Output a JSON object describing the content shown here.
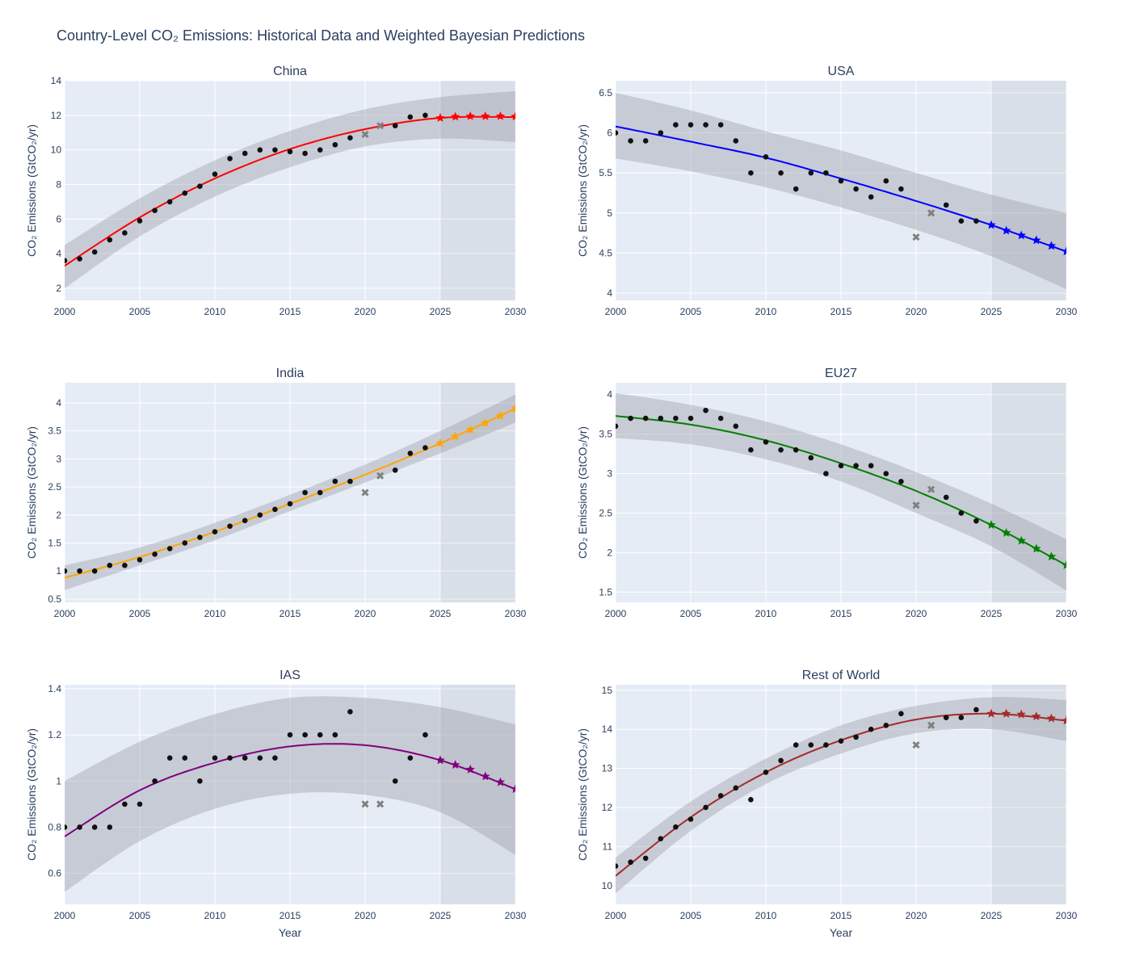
{
  "chart_data": {
    "type": "line",
    "title": "Country-Level CO₂ Emissions: Historical Data and Weighted Bayesian Predictions",
    "xlabel": "Year",
    "ylabel": "CO₂ Emissions (GtCO₂/yr)",
    "xlim": [
      2000,
      2030
    ],
    "x_ticks": [
      2000,
      2005,
      2010,
      2015,
      2020,
      2025,
      2030
    ],
    "forecast_region": [
      2025,
      2030
    ],
    "grid": true,
    "observed_years": [
      2000,
      2001,
      2002,
      2003,
      2004,
      2005,
      2006,
      2007,
      2008,
      2009,
      2010,
      2011,
      2012,
      2013,
      2014,
      2015,
      2016,
      2017,
      2018,
      2019,
      2022,
      2023,
      2024
    ],
    "outlier_years": [
      2020,
      2021
    ],
    "prediction_years": [
      2025,
      2026,
      2027,
      2028,
      2029,
      2030
    ],
    "fit_years": [
      2000,
      2005,
      2010,
      2015,
      2020,
      2025,
      2030
    ],
    "subplots": [
      {
        "name": "China",
        "color": "#FF0000",
        "ylim": [
          1.3,
          14
        ],
        "y_ticks": [
          2,
          4,
          6,
          8,
          10,
          12,
          14
        ],
        "observed": [
          3.6,
          3.7,
          4.1,
          4.8,
          5.2,
          5.9,
          6.5,
          7.0,
          7.5,
          7.9,
          8.6,
          9.5,
          9.8,
          10.0,
          10.0,
          9.9,
          9.8,
          10.0,
          10.3,
          10.7,
          11.4,
          11.9,
          12.0
        ],
        "outliers": [
          10.9,
          11.4
        ],
        "fit": [
          3.3,
          6.1,
          8.35,
          10.05,
          11.2,
          11.85,
          11.9
        ],
        "lower": [
          2.0,
          5.0,
          7.3,
          9.0,
          10.2,
          10.65,
          10.45
        ],
        "upper": [
          4.5,
          7.2,
          9.4,
          11.1,
          12.35,
          13.05,
          13.4
        ],
        "predictions": [
          11.85,
          11.92,
          11.95,
          11.95,
          11.95,
          11.93
        ]
      },
      {
        "name": "USA",
        "color": "#0000FF",
        "ylim": [
          3.91,
          6.65
        ],
        "y_ticks": [
          4,
          4.5,
          5,
          5.5,
          6,
          6.5
        ],
        "observed": [
          6.0,
          5.9,
          5.9,
          6.0,
          6.1,
          6.1,
          6.1,
          6.1,
          5.9,
          5.5,
          5.7,
          5.5,
          5.3,
          5.5,
          5.5,
          5.4,
          5.3,
          5.2,
          5.4,
          5.3,
          5.1,
          4.9,
          4.9
        ],
        "outliers": [
          4.7,
          5.0
        ],
        "fit": [
          6.08,
          5.89,
          5.69,
          5.43,
          5.15,
          4.85,
          4.52
        ],
        "lower": [
          5.68,
          5.52,
          5.32,
          5.07,
          4.79,
          4.46,
          4.05
        ],
        "upper": [
          6.5,
          6.28,
          6.02,
          5.78,
          5.5,
          5.23,
          5.0
        ],
        "predictions": [
          4.85,
          4.78,
          4.72,
          4.66,
          4.59,
          4.52
        ]
      },
      {
        "name": "India",
        "color": "#FFA500",
        "ylim": [
          0.44,
          4.36
        ],
        "y_ticks": [
          0.5,
          1,
          1.5,
          2,
          2.5,
          3,
          3.5,
          4
        ],
        "observed": [
          1.0,
          1.0,
          1.0,
          1.1,
          1.1,
          1.2,
          1.3,
          1.4,
          1.5,
          1.6,
          1.7,
          1.8,
          1.9,
          2.0,
          2.1,
          2.2,
          2.4,
          2.4,
          2.6,
          2.6,
          2.8,
          3.1,
          3.2
        ],
        "outliers": [
          2.4,
          2.7
        ],
        "fit": [
          0.88,
          1.25,
          1.7,
          2.2,
          2.72,
          3.28,
          3.9
        ],
        "lower": [
          0.66,
          1.1,
          1.55,
          2.07,
          2.58,
          3.1,
          3.65
        ],
        "upper": [
          1.1,
          1.42,
          1.86,
          2.36,
          2.9,
          3.5,
          4.15
        ],
        "predictions": [
          3.28,
          3.4,
          3.52,
          3.64,
          3.77,
          3.9
        ]
      },
      {
        "name": "EU27",
        "color": "#008000",
        "ylim": [
          1.37,
          4.15
        ],
        "y_ticks": [
          1.5,
          2,
          2.5,
          3,
          3.5,
          4
        ],
        "observed": [
          3.6,
          3.7,
          3.7,
          3.7,
          3.7,
          3.7,
          3.8,
          3.7,
          3.6,
          3.3,
          3.4,
          3.3,
          3.3,
          3.2,
          3.0,
          3.1,
          3.1,
          3.1,
          3.0,
          2.9,
          2.7,
          2.5,
          2.4
        ],
        "outliers": [
          2.6,
          2.8
        ],
        "fit": [
          3.73,
          3.62,
          3.42,
          3.13,
          2.78,
          2.35,
          1.84
        ],
        "lower": [
          3.45,
          3.37,
          3.18,
          2.9,
          2.5,
          2.08,
          1.52
        ],
        "upper": [
          4.02,
          3.87,
          3.66,
          3.37,
          3.02,
          2.62,
          2.17
        ],
        "predictions": [
          2.35,
          2.25,
          2.15,
          2.05,
          1.95,
          1.84
        ]
      },
      {
        "name": "IAS",
        "color": "#800080",
        "ylim": [
          0.466,
          1.417
        ],
        "y_ticks": [
          0.6,
          0.8,
          1,
          1.2,
          1.4
        ],
        "observed": [
          0.8,
          0.8,
          0.8,
          0.8,
          0.9,
          0.9,
          1.0,
          1.1,
          1.1,
          1.0,
          1.1,
          1.1,
          1.1,
          1.1,
          1.1,
          1.2,
          1.2,
          1.2,
          1.2,
          1.3,
          1.0,
          1.1,
          1.2
        ],
        "outliers": [
          0.9,
          0.9
        ],
        "fit": [
          0.76,
          0.96,
          1.08,
          1.15,
          1.155,
          1.09,
          0.965
        ],
        "lower": [
          0.52,
          0.74,
          0.88,
          0.945,
          0.94,
          0.865,
          0.68
        ],
        "upper": [
          1.0,
          1.17,
          1.29,
          1.36,
          1.36,
          1.32,
          1.245
        ],
        "predictions": [
          1.09,
          1.07,
          1.05,
          1.02,
          0.995,
          0.965
        ]
      },
      {
        "name": "Rest of World",
        "color": "#A52A2A",
        "ylim": [
          9.52,
          15.14
        ],
        "y_ticks": [
          10,
          11,
          12,
          13,
          14,
          15
        ],
        "observed": [
          10.5,
          10.6,
          10.7,
          11.2,
          11.5,
          11.7,
          12.0,
          12.3,
          12.5,
          12.2,
          12.9,
          13.2,
          13.6,
          13.6,
          13.6,
          13.7,
          13.8,
          14.0,
          14.1,
          14.4,
          14.3,
          14.3,
          14.5
        ],
        "outliers": [
          13.6,
          14.1
        ],
        "fit": [
          10.25,
          11.75,
          12.9,
          13.72,
          14.25,
          14.4,
          14.22
        ],
        "lower": [
          9.8,
          11.4,
          12.6,
          13.38,
          13.9,
          14.0,
          13.7
        ],
        "upper": [
          10.72,
          12.15,
          13.25,
          14.1,
          14.6,
          14.82,
          14.75
        ],
        "predictions": [
          14.4,
          14.4,
          14.38,
          14.33,
          14.28,
          14.22
        ]
      }
    ]
  }
}
